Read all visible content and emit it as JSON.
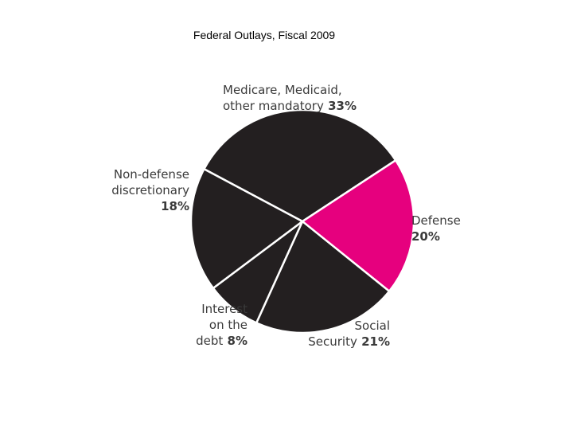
{
  "chart_data": {
    "type": "pie",
    "title": "Federal Outlays, Fiscal 2009",
    "slices": [
      {
        "lines": [
          "Medicare, Medicaid,",
          "other mandatory"
        ],
        "pct_label": "33%",
        "value": 33,
        "color": "#231f20"
      },
      {
        "lines": [
          "Defense"
        ],
        "pct_label": "20%",
        "value": 20,
        "color": "#e6007e"
      },
      {
        "lines": [
          "Social",
          "Security"
        ],
        "pct_label": "21%",
        "value": 21,
        "color": "#231f20"
      },
      {
        "lines": [
          "Interest",
          "on the",
          "debt"
        ],
        "pct_label": "8%",
        "value": 8,
        "color": "#231f20"
      },
      {
        "lines": [
          "Non-defense",
          "discretionary"
        ],
        "pct_label": "18%",
        "value": 18,
        "color": "#231f20"
      }
    ]
  }
}
